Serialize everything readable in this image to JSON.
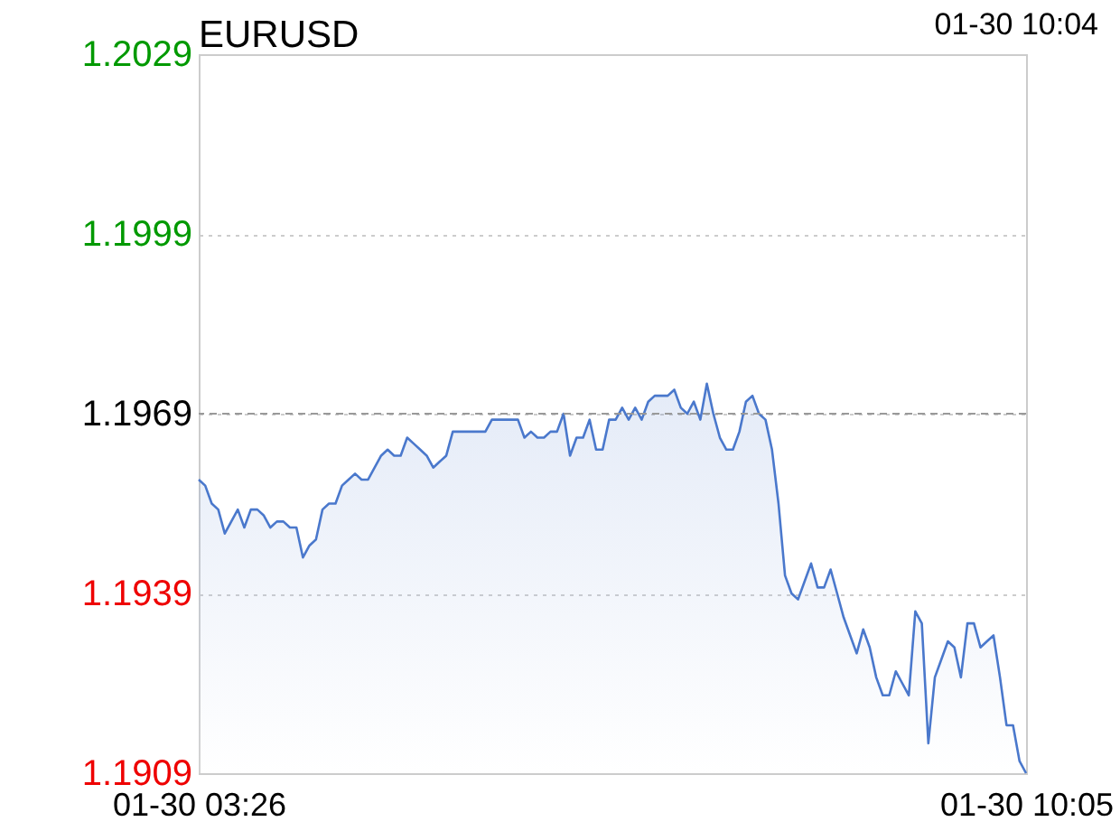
{
  "chart_data": {
    "type": "area",
    "title": "EURUSD",
    "annotations": [
      "01-30 10:04"
    ],
    "ylim": [
      1.1909,
      1.2029
    ],
    "categories": [
      "01-30 03:26",
      null,
      null,
      null,
      null,
      null,
      null,
      null,
      null,
      null,
      null,
      null,
      null,
      null,
      null,
      null,
      null,
      null,
      null,
      null,
      null,
      null,
      null,
      null,
      null,
      null,
      null,
      null,
      null,
      null,
      null,
      null,
      null,
      null,
      null,
      null,
      null,
      null,
      null,
      null,
      null,
      null,
      null,
      null,
      null,
      null,
      null,
      null,
      null,
      null,
      null,
      null,
      null,
      null,
      null,
      null,
      null,
      null,
      null,
      null,
      null,
      null,
      null,
      null,
      null,
      null,
      null,
      null,
      null,
      null,
      null,
      null,
      null,
      null,
      null,
      null,
      null,
      null,
      null,
      null,
      null,
      null,
      null,
      null,
      null,
      null,
      null,
      null,
      null,
      null,
      null,
      null,
      null,
      null,
      null,
      null,
      null,
      null,
      null,
      null,
      null,
      null,
      null,
      null,
      null,
      null,
      null,
      null,
      null,
      null,
      null,
      null,
      null,
      null,
      null,
      null,
      null,
      null,
      null,
      null,
      null,
      null,
      null,
      null,
      null,
      null,
      null,
      "01-30 10:05"
    ],
    "yticks": [
      1.1909,
      1.1939,
      1.1969,
      1.1999,
      1.2029
    ],
    "grid": "y",
    "ref_lines": [
      {
        "axis": "y",
        "value": 1.1969,
        "label": null,
        "color": "#999999",
        "line_style": "dashed"
      }
    ],
    "series": [
      {
        "color": "#4a78cc",
        "values": [
          1.1958,
          1.1957,
          1.1954,
          1.1953,
          1.1949,
          1.1951,
          1.1953,
          1.195,
          1.1953,
          1.1953,
          1.1952,
          1.195,
          1.1951,
          1.1951,
          1.195,
          1.195,
          1.1945,
          1.1947,
          1.1948,
          1.1953,
          1.1954,
          1.1954,
          1.1957,
          1.1958,
          1.1959,
          1.1958,
          1.1958,
          1.196,
          1.1962,
          1.1963,
          1.1962,
          1.1962,
          1.1965,
          1.1964,
          1.1963,
          1.1962,
          1.196,
          1.1961,
          1.1962,
          1.1966,
          1.1966,
          1.1966,
          1.1966,
          1.1966,
          1.1966,
          1.1968,
          1.1968,
          1.1968,
          1.1968,
          1.1968,
          1.1965,
          1.1966,
          1.1965,
          1.1965,
          1.1966,
          1.1966,
          1.1969,
          1.1962,
          1.1965,
          1.1965,
          1.1968,
          1.1963,
          1.1963,
          1.1968,
          1.1968,
          1.197,
          1.1968,
          1.197,
          1.1968,
          1.1971,
          1.1972,
          1.1972,
          1.1972,
          1.1973,
          1.197,
          1.1969,
          1.1971,
          1.1968,
          1.1974,
          1.1969,
          1.1965,
          1.1963,
          1.1963,
          1.1966,
          1.1971,
          1.1972,
          1.1969,
          1.1968,
          1.1963,
          1.1954,
          1.1942,
          1.1939,
          1.1938,
          1.1941,
          1.1944,
          1.194,
          1.194,
          1.1943,
          1.1939,
          1.1935,
          1.1932,
          1.1929,
          1.1933,
          1.193,
          1.1925,
          1.1922,
          1.1922,
          1.1926,
          1.1924,
          1.1922,
          1.1936,
          1.1934,
          1.1914,
          1.1925,
          1.1928,
          1.1931,
          1.193,
          1.1925,
          1.1934,
          1.1934,
          1.193,
          1.1931,
          1.1932,
          1.1925,
          1.1917,
          1.1917,
          1.1911,
          1.1909
        ]
      }
    ]
  }
}
